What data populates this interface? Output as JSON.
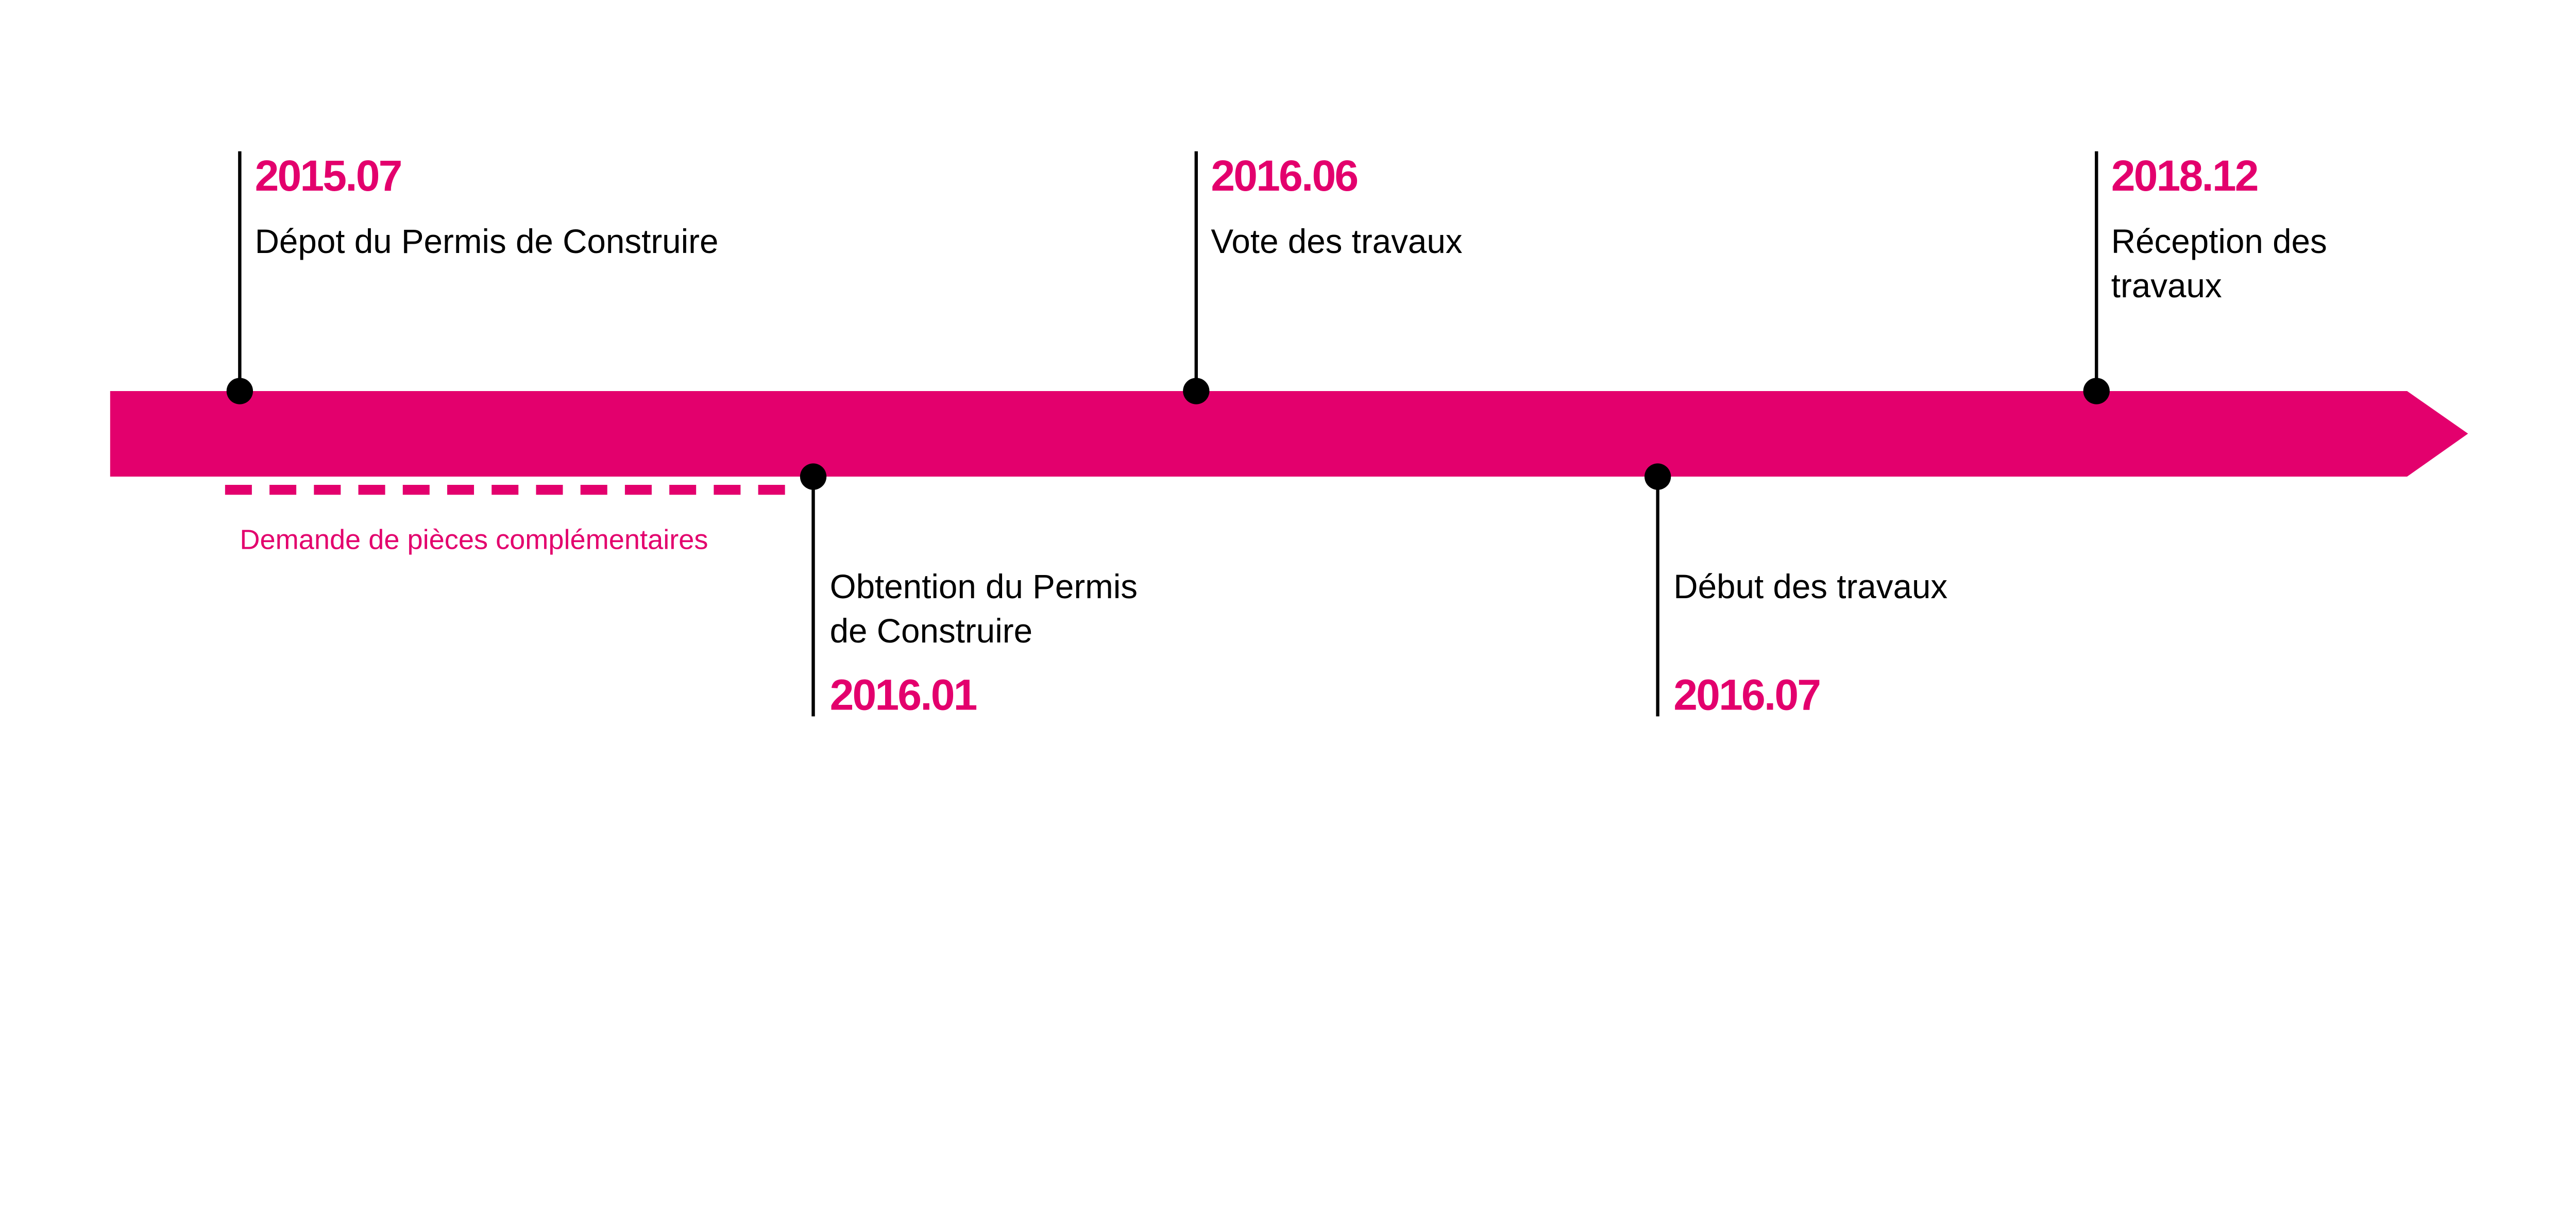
{
  "colors": {
    "accent": "#E3006D",
    "marker": "#000000",
    "background": "#FFFFFF"
  },
  "milestones": [
    {
      "date": "2015.07",
      "lines": [
        "Dépot du Permis de Construire"
      ],
      "side": "top"
    },
    {
      "date": "2016.01",
      "lines": [
        "Obtention du Permis",
        "de Construire"
      ],
      "side": "bottom"
    },
    {
      "date": "2016.06",
      "lines": [
        "Vote des travaux"
      ],
      "side": "top"
    },
    {
      "date": "2016.07",
      "lines": [
        "Début des travaux"
      ],
      "side": "bottom"
    },
    {
      "date": "2018.12",
      "lines": [
        "Réception des",
        "travaux"
      ],
      "side": "top"
    }
  ],
  "period_note": {
    "label": "Demande de pièces complémentaires",
    "from": "2015.07",
    "to": "2016.01"
  }
}
